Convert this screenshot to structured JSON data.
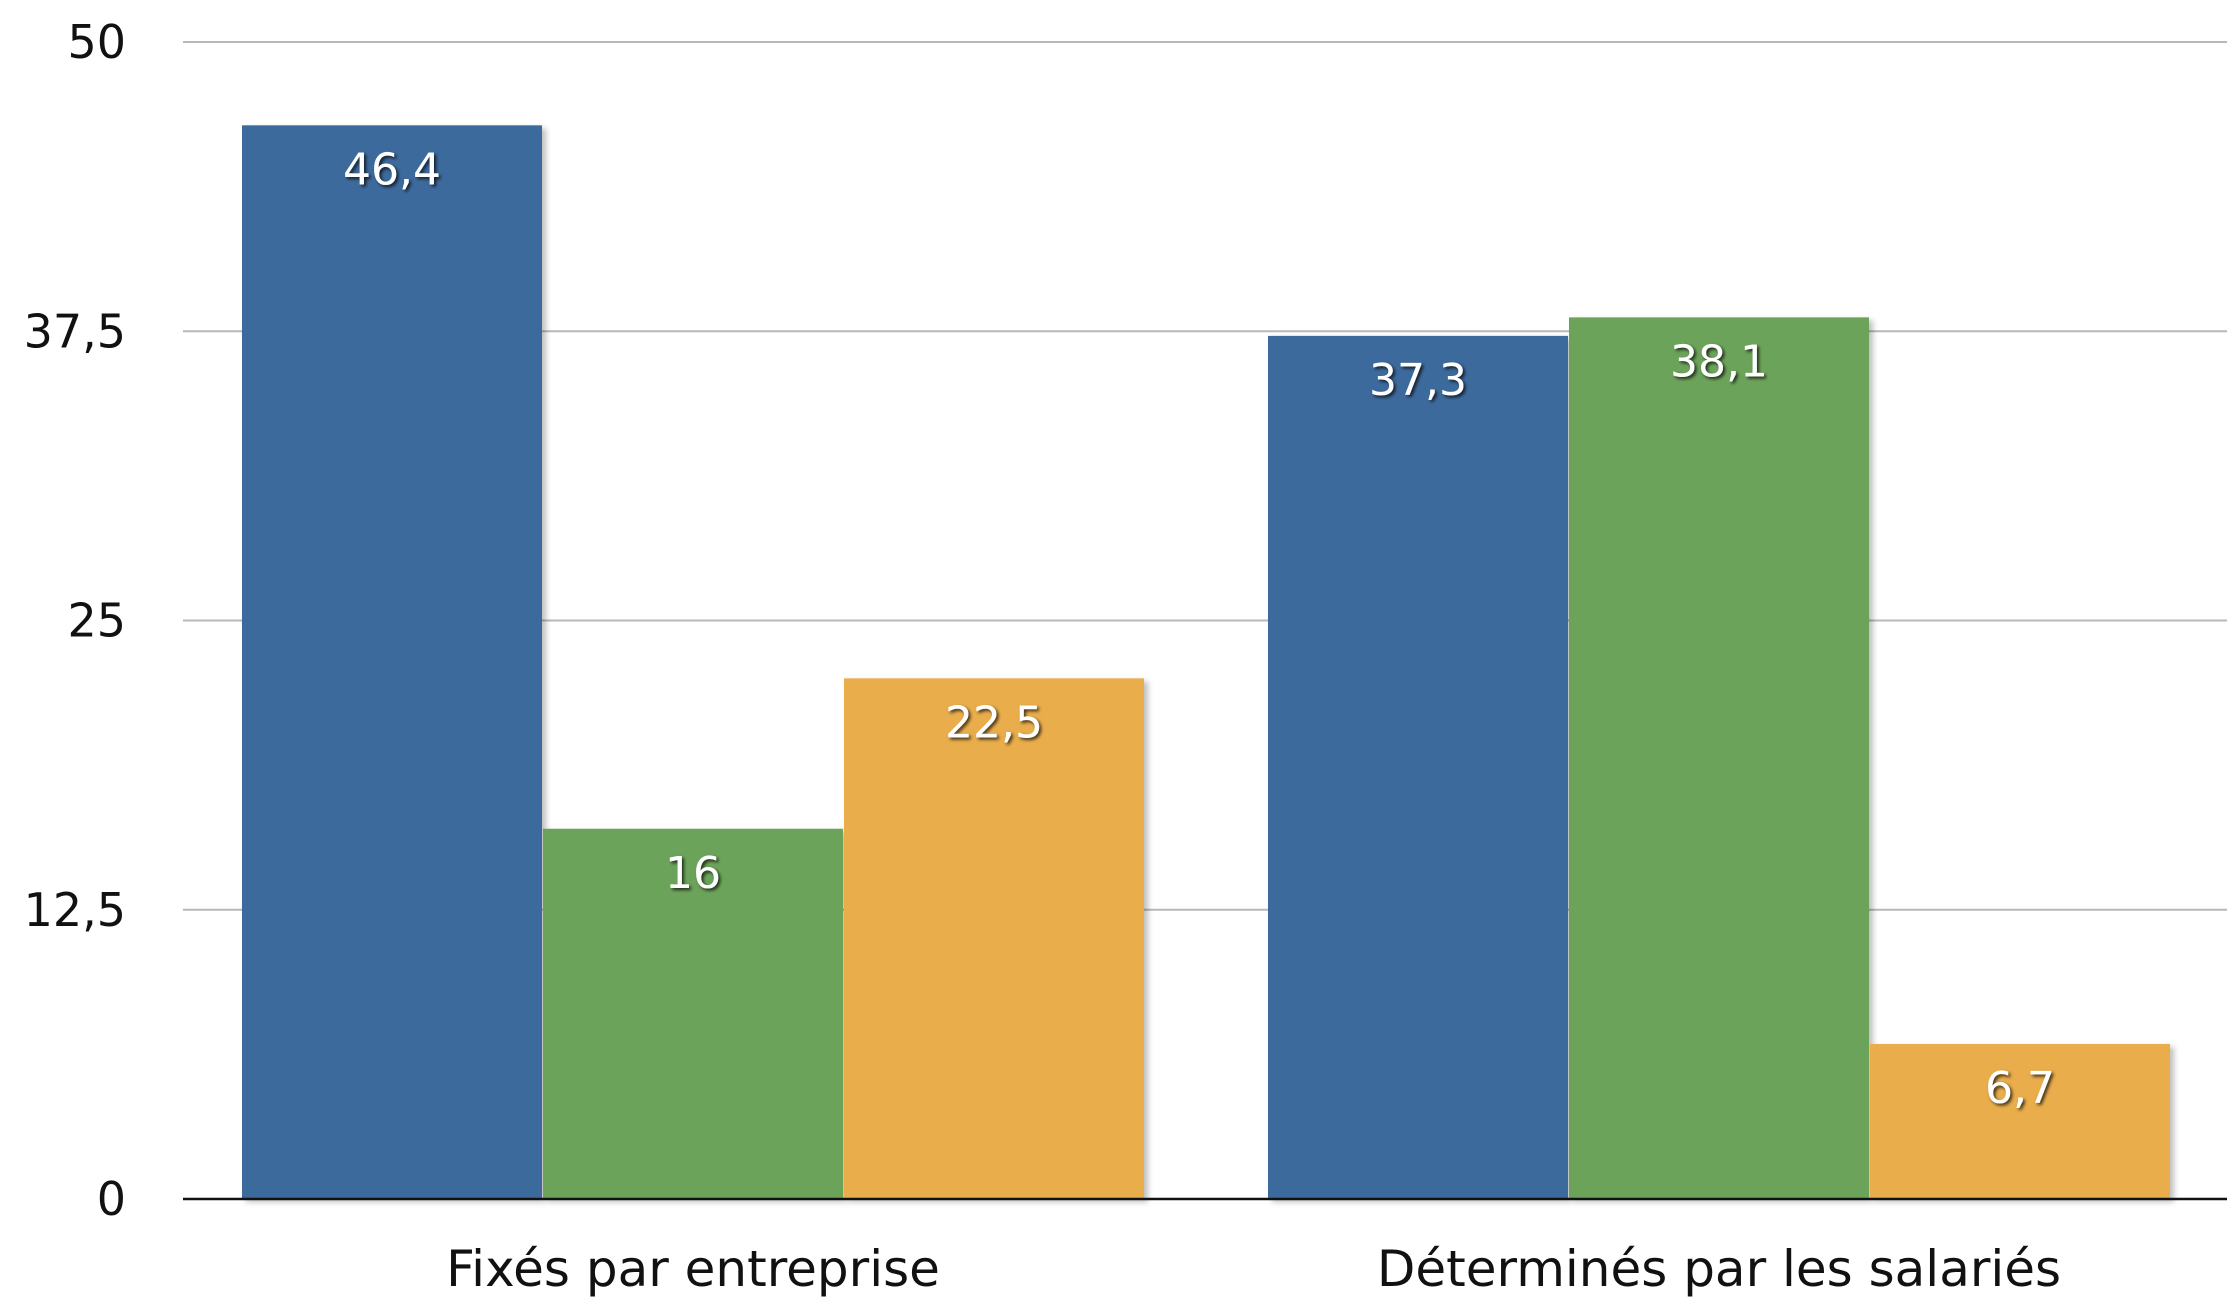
{
  "chart_data": {
    "type": "bar",
    "categories": [
      "Fixés par entreprise",
      "Déterminés par les salariés"
    ],
    "series": [
      {
        "color": "#3d6b9c",
        "values": [
          46.4,
          37.3
        ],
        "labels": [
          "46,4",
          "37,3"
        ]
      },
      {
        "color": "#6ca35a",
        "values": [
          16,
          38.1
        ],
        "labels": [
          "16",
          "38,1"
        ]
      },
      {
        "color": "#e9ad4c",
        "values": [
          22.5,
          6.7
        ],
        "labels": [
          "22,5",
          "6,7"
        ]
      }
    ],
    "yticks": [
      0,
      12.5,
      25,
      37.5,
      50
    ],
    "ytick_labels": [
      "0",
      "12,5",
      "25",
      "37,5",
      "50"
    ],
    "ylim": [
      0,
      50
    ],
    "grid": true,
    "legend": "none"
  }
}
